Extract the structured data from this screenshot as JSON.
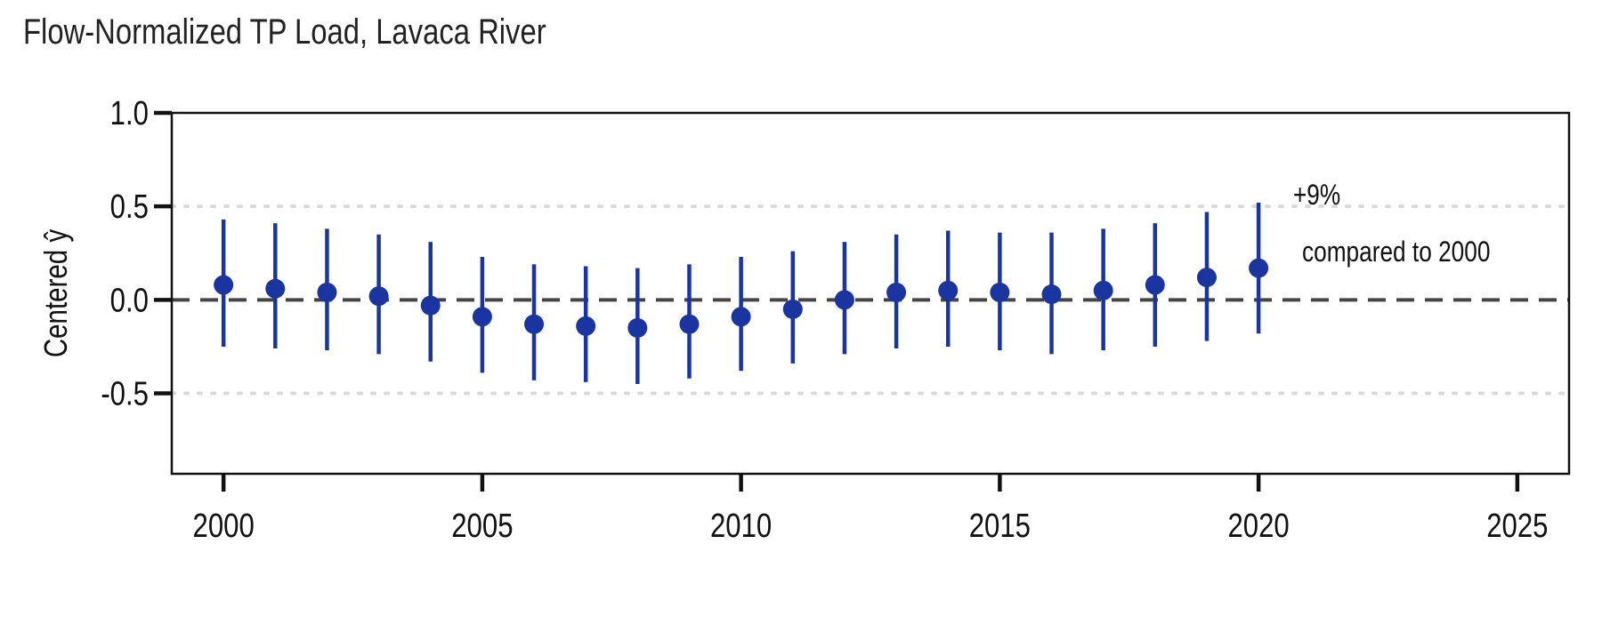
{
  "title": "Flow-Normalized TP Load, Lavaca River",
  "colors": {
    "point": "#1B35A0",
    "reference": "#444444",
    "grid": "#D9D9D9"
  },
  "chart_data": {
    "type": "scatter",
    "title": "Flow-Normalized TP Load, Lavaca River",
    "xlabel": "",
    "ylabel": "Centered ŷ",
    "xlim": [
      1999,
      2026
    ],
    "ylim": [
      -0.93,
      1.0
    ],
    "xticks": [
      2000,
      2005,
      2010,
      2015,
      2020,
      2025
    ],
    "xtick_labels": [
      "2000",
      "2005",
      "2010",
      "2015",
      "2020",
      "2025"
    ],
    "yticks": [
      1.0,
      0.5,
      0.0,
      -0.5
    ],
    "ytick_labels": [
      "1.0",
      "0.5",
      "0.0",
      "-0.5"
    ],
    "reference_line": {
      "y": 0,
      "style": "dashed"
    },
    "grid": {
      "y": [
        0.5,
        -0.5
      ],
      "style": "dotted"
    },
    "series": [
      {
        "x": [
          2000,
          2001,
          2002,
          2003,
          2004,
          2005,
          2006,
          2007,
          2008,
          2009,
          2010,
          2011,
          2012,
          2013,
          2014,
          2015,
          2016,
          2017,
          2018,
          2019,
          2020
        ],
        "y": [
          0.08,
          0.06,
          0.04,
          0.02,
          -0.03,
          -0.09,
          -0.13,
          -0.14,
          -0.15,
          -0.13,
          -0.09,
          -0.05,
          0.0,
          0.04,
          0.05,
          0.04,
          0.03,
          0.05,
          0.08,
          0.12,
          0.17
        ],
        "lower": [
          -0.25,
          -0.26,
          -0.27,
          -0.29,
          -0.33,
          -0.39,
          -0.43,
          -0.44,
          -0.45,
          -0.42,
          -0.38,
          -0.34,
          -0.29,
          -0.26,
          -0.25,
          -0.27,
          -0.29,
          -0.27,
          -0.25,
          -0.22,
          -0.18
        ],
        "upper": [
          0.43,
          0.41,
          0.38,
          0.35,
          0.31,
          0.23,
          0.19,
          0.18,
          0.17,
          0.19,
          0.23,
          0.26,
          0.31,
          0.35,
          0.37,
          0.36,
          0.36,
          0.38,
          0.41,
          0.47,
          0.52
        ]
      }
    ],
    "annotations": [
      "+9%",
      "compared to 2000"
    ]
  }
}
